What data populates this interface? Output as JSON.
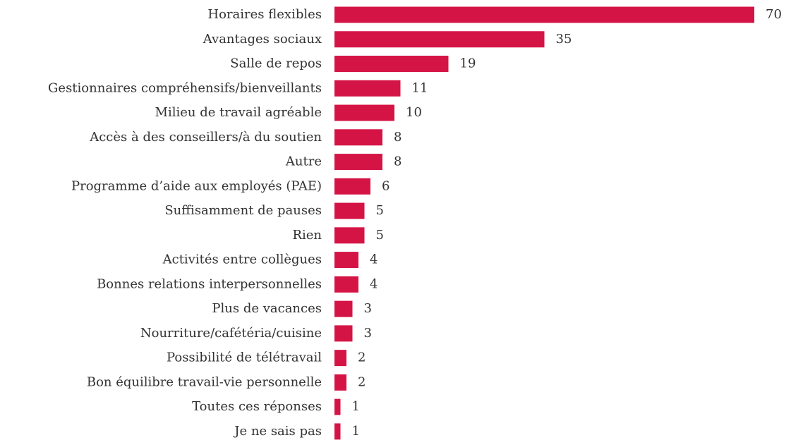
{
  "chart_data": {
    "type": "barh",
    "color": "#d51446",
    "categories": [
      "Horaires flexibles",
      "Avantages sociaux",
      "Salle de repos",
      "Gestionnaires compréhensifs/bienveillants",
      "Milieu de travail agréable",
      "Accès à des conseillers/à du soutien",
      "Autre",
      "Programme d’aide aux employés (PAE)",
      "Suffisamment de pauses",
      "Rien",
      "Activités entre collègues",
      "Bonnes relations interpersonnelles",
      "Plus de vacances",
      "Nourriture/cafétéria/cuisine",
      "Possibilité de télétravail",
      "Bon équilibre travail-vie personnelle",
      "Toutes ces réponses",
      "Je ne sais pas"
    ],
    "values": [
      70,
      35,
      19,
      11,
      10,
      8,
      8,
      6,
      5,
      5,
      4,
      4,
      3,
      3,
      2,
      2,
      1,
      1
    ]
  }
}
